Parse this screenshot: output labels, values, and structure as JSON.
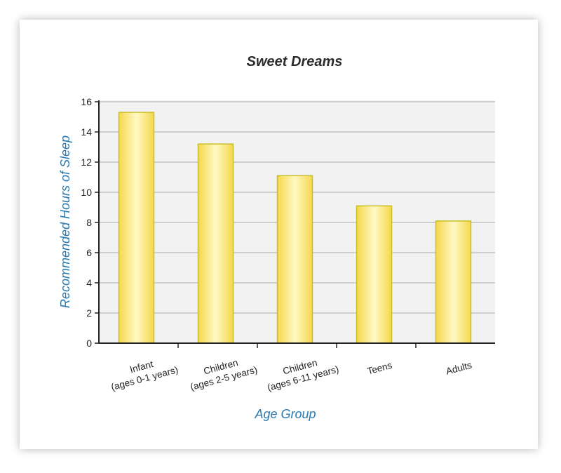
{
  "chart_data": {
    "type": "bar",
    "title": "Sweet Dreams",
    "xlabel": "Age Group",
    "ylabel": "Recommended Hours of Sleep",
    "categories": [
      [
        "Infant",
        "(ages 0-1 years)"
      ],
      [
        "Children",
        "(ages 2-5 years)"
      ],
      [
        "Children",
        "(ages 6-11 years)"
      ],
      [
        "Teens"
      ],
      [
        "Adults"
      ]
    ],
    "values": [
      15.3,
      13.2,
      11.1,
      9.1,
      8.1
    ],
    "ylim": [
      0,
      16
    ],
    "yticks": [
      0,
      2,
      4,
      6,
      8,
      10,
      12,
      14,
      16
    ],
    "grid": true,
    "colors": {
      "bar_fill_edge": "#f5d84a",
      "bar_fill_center": "#fff8c4",
      "bar_stroke": "#c9bf2a",
      "axis_title": "#2a7ab0",
      "plot_background": "#f2f2f2",
      "gridline": "#aaaaaa",
      "axis": "#222222"
    }
  }
}
